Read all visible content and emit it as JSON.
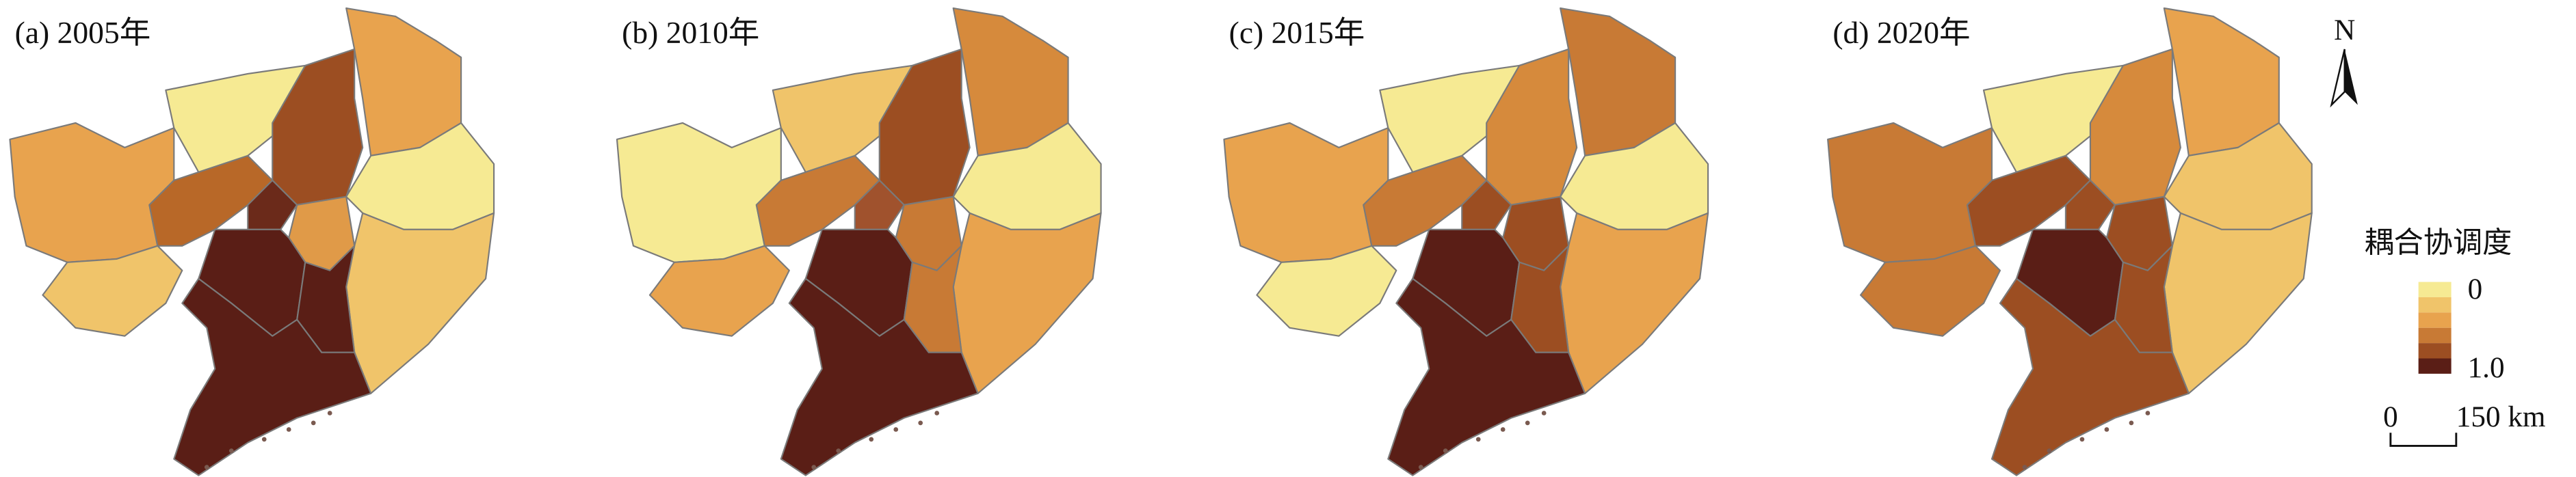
{
  "panels": [
    {
      "label": "(a) 2005年",
      "region_colors": [
        "#E8A34E",
        "#F0C46A",
        "#F6EA93",
        "#9C4E22",
        "#E8A34E",
        "#B86828",
        "#6B2A1A",
        "#E09A48",
        "#F6EA93",
        "#5A1E16",
        "#F0C46A",
        "#5A1E16",
        "#5A1E16"
      ]
    },
    {
      "label": "(b) 2010年",
      "region_colors": [
        "#F6EA93",
        "#E8A34E",
        "#F0C46A",
        "#9C4E22",
        "#D68A3C",
        "#C87A35",
        "#A0522D",
        "#C87A35",
        "#F6EA93",
        "#5A1E16",
        "#E8A34E",
        "#C87A35",
        "#5A1E16"
      ]
    },
    {
      "label": "(c) 2015年",
      "region_colors": [
        "#E8A34E",
        "#F6EA93",
        "#F6EA93",
        "#D68A3C",
        "#C87A35",
        "#C87A35",
        "#9C4E22",
        "#9C4E22",
        "#F6EA93",
        "#5A1E16",
        "#E8A34E",
        "#9C4E22",
        "#5A1E16"
      ]
    },
    {
      "label": "(d) 2020年",
      "region_colors": [
        "#C87A35",
        "#C87A35",
        "#F6EA93",
        "#D68A3C",
        "#E8A34E",
        "#9C4E22",
        "#9C4E22",
        "#9C4E22",
        "#F0C46A",
        "#5A1E16",
        "#F0C46A",
        "#9C4E22",
        "#9C4E22"
      ]
    }
  ],
  "legend": {
    "title": "耦合协调度",
    "colors": [
      "#F6EA93",
      "#F0C46A",
      "#E8A34E",
      "#C87A35",
      "#9C4E22",
      "#5A1E16"
    ],
    "low_label": "0",
    "high_label": "1.0"
  },
  "north_arrow": {
    "label": "N"
  },
  "scale_bar": {
    "start_label": "0",
    "end_label": "150 km"
  }
}
